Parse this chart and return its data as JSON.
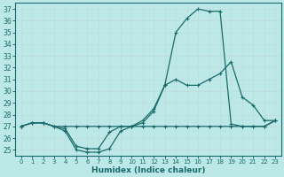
{
  "xlabel": "Humidex (Indice chaleur)",
  "bg_color": "#bce8e8",
  "grid_color": "#d8f0f0",
  "line_color": "#1a6b6b",
  "xlim": [
    -0.5,
    23.5
  ],
  "ylim": [
    24.5,
    37.5
  ],
  "yticks": [
    25,
    26,
    27,
    28,
    29,
    30,
    31,
    32,
    33,
    34,
    35,
    36,
    37
  ],
  "xticks": [
    0,
    1,
    2,
    3,
    4,
    5,
    6,
    7,
    8,
    9,
    10,
    11,
    12,
    13,
    14,
    15,
    16,
    17,
    18,
    19,
    20,
    21,
    22,
    23
  ],
  "line1_y": [
    27.0,
    27.3,
    27.3,
    27.0,
    26.6,
    25.0,
    24.8,
    24.8,
    25.1,
    26.6,
    27.0,
    27.3,
    28.3,
    30.5,
    31.0,
    30.5,
    30.5,
    31.0,
    31.5,
    32.5,
    29.5,
    28.8,
    27.5,
    27.5
  ],
  "line2_y": [
    27.0,
    27.3,
    27.3,
    27.0,
    26.8,
    25.3,
    25.1,
    25.1,
    26.5,
    27.0,
    27.0,
    27.5,
    28.5,
    30.5,
    35.0,
    36.2,
    37.0,
    36.8,
    36.8,
    27.2,
    27.0,
    27.0,
    27.0,
    27.5
  ],
  "line3_y": [
    27.0,
    27.3,
    27.3,
    27.0,
    27.0,
    27.0,
    27.0,
    27.0,
    27.0,
    27.0,
    27.0,
    27.0,
    27.0,
    27.0,
    27.0,
    27.0,
    27.0,
    27.0,
    27.0,
    27.0,
    27.0,
    27.0,
    27.0,
    27.5
  ]
}
